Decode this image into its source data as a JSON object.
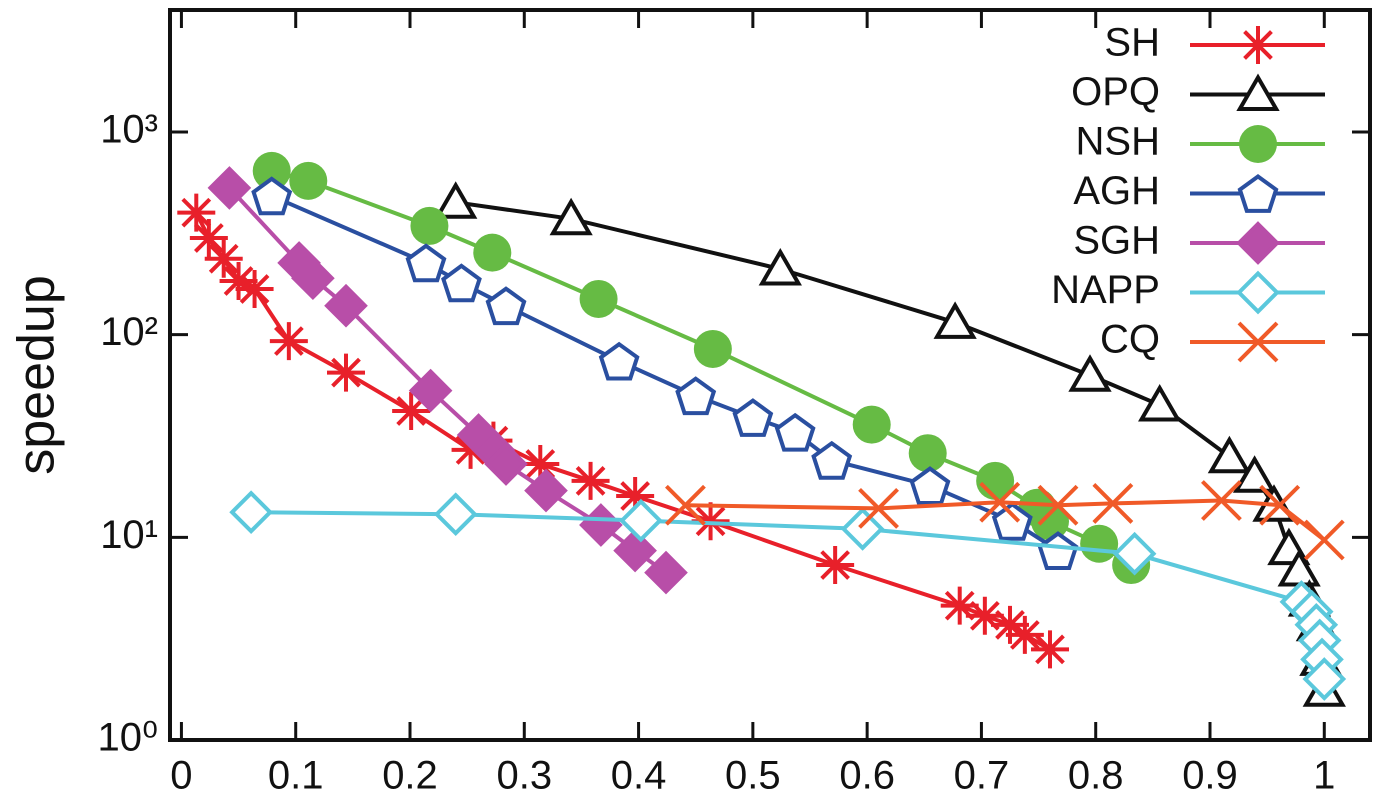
{
  "chart_data": {
    "type": "line",
    "y_label": "speedup",
    "ylog": true,
    "legend": "upper right",
    "xlim": [
      -0.01,
      1.04
    ],
    "ylim": [
      1,
      4000
    ],
    "xticks": [
      0,
      0.1,
      0.2,
      0.3,
      0.4,
      0.5,
      0.6,
      0.7,
      0.8,
      0.9,
      1
    ],
    "yticks": [
      {
        "value": 1,
        "label": "10⁰"
      },
      {
        "value": 10,
        "label": "10¹"
      },
      {
        "value": 100,
        "label": "10²"
      },
      {
        "value": 1000,
        "label": "10³"
      }
    ],
    "series": [
      {
        "name": "SH",
        "color": "#e8202a",
        "marker": "star",
        "filled": false,
        "x": [
          0.013,
          0.024,
          0.037,
          0.05,
          0.064,
          0.094,
          0.144,
          0.201,
          0.253,
          0.273,
          0.314,
          0.358,
          0.397,
          0.463,
          0.572,
          0.681,
          0.703,
          0.725,
          0.738,
          0.76
        ],
        "values": [
          400,
          300,
          237,
          184,
          168,
          93,
          65,
          42,
          27,
          30,
          23,
          19,
          16,
          12,
          7.3,
          4.6,
          4.1,
          3.7,
          3.3,
          2.8
        ]
      },
      {
        "name": "OPQ",
        "color": "#111111",
        "marker": "triangle",
        "filled": false,
        "x": [
          0.24,
          0.341,
          0.524,
          0.677,
          0.795,
          0.856,
          0.917,
          0.939,
          0.956,
          0.969,
          0.978,
          0.987,
          0.994,
          0.997,
          1.0
        ],
        "values": [
          450,
          373,
          211,
          115,
          63,
          45,
          25,
          20,
          14.4,
          8.8,
          6.9,
          4.9,
          3.7,
          2.5,
          1.76
        ]
      },
      {
        "name": "NSH",
        "color": "#66bb44",
        "marker": "circle",
        "filled": true,
        "x": [
          0.079,
          0.111,
          0.217,
          0.272,
          0.365,
          0.465,
          0.604,
          0.653,
          0.712,
          0.749,
          0.76,
          0.803,
          0.831
        ],
        "values": [
          643,
          574,
          344,
          254,
          150,
          85,
          36,
          26,
          19,
          14,
          12,
          9.3,
          7.3
        ]
      },
      {
        "name": "AGH",
        "color": "#2a4fa0",
        "marker": "pentagon",
        "filled": false,
        "x": [
          0.079,
          0.214,
          0.245,
          0.284,
          0.383,
          0.45,
          0.5,
          0.537,
          0.569,
          0.655,
          0.727,
          0.767
        ],
        "values": [
          484,
          226,
          180,
          139,
          74,
          50,
          39,
          33,
          24,
          18,
          12,
          8.6
        ]
      },
      {
        "name": "SGH",
        "color": "#b84ea8",
        "marker": "diamond",
        "filled": true,
        "x": [
          0.042,
          0.103,
          0.115,
          0.144,
          0.218,
          0.26,
          0.273,
          0.284,
          0.319,
          0.367,
          0.397,
          0.424
        ],
        "values": [
          530,
          226,
          190,
          139,
          53,
          32,
          27,
          23,
          17,
          11.5,
          8.6,
          6.7
        ]
      },
      {
        "name": "NAPP",
        "color": "#5bc8dc",
        "marker": "diamond",
        "filled": false,
        "x": [
          0.061,
          0.24,
          0.402,
          0.596,
          0.834,
          0.98,
          0.989,
          0.993,
          0.996,
          0.998,
          1.0
        ],
        "values": [
          13.3,
          13,
          12.1,
          11,
          8.3,
          4.8,
          4.3,
          3.7,
          3.1,
          2.5,
          2.0
        ]
      },
      {
        "name": "CQ",
        "color": "#f05a28",
        "marker": "cross",
        "filled": false,
        "x": [
          0.441,
          0.61,
          0.716,
          0.767,
          0.815,
          0.91,
          0.961,
          1.0
        ],
        "values": [
          14.4,
          13.9,
          14.9,
          14.4,
          14.7,
          15.2,
          14.4,
          9.7
        ]
      }
    ]
  }
}
